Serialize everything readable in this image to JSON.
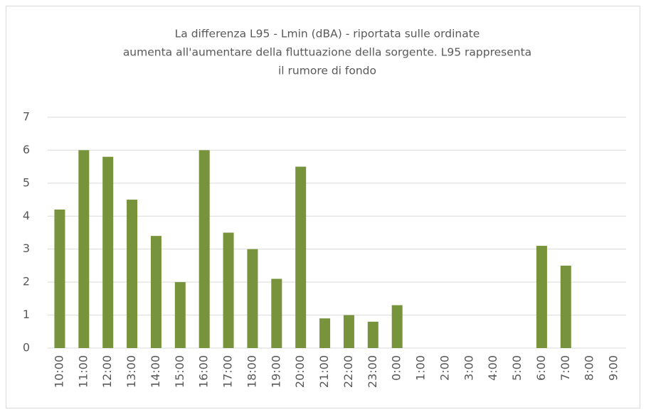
{
  "chart_data": {
    "type": "bar",
    "title": [
      "La differenza L95 - Lmin  (dBA) - riportata sulle ordinate",
      "aumenta all'aumentare della fluttuazione della sorgente.  L95 rappresenta",
      "il rumore di fondo"
    ],
    "categories": [
      "10:00",
      "11:00",
      "12:00",
      "13:00",
      "14:00",
      "15:00",
      "16:00",
      "17:00",
      "18:00",
      "19:00",
      "20:00",
      "21:00",
      "22:00",
      "23:00",
      "0:00",
      "1:00",
      "2:00",
      "3:00",
      "4:00",
      "5:00",
      "6:00",
      "7:00",
      "8:00",
      "9:00"
    ],
    "values": [
      4.2,
      6,
      5.8,
      4.5,
      3.4,
      2,
      6,
      3.5,
      3,
      2.1,
      5.5,
      0.9,
      1,
      0.8,
      1.3,
      null,
      null,
      null,
      null,
      null,
      3.1,
      2.5,
      null,
      null
    ],
    "color": "#77933c",
    "ylim": [
      0,
      7
    ],
    "yticks": [
      0,
      1,
      2,
      3,
      4,
      5,
      6,
      7
    ],
    "grid": true
  }
}
